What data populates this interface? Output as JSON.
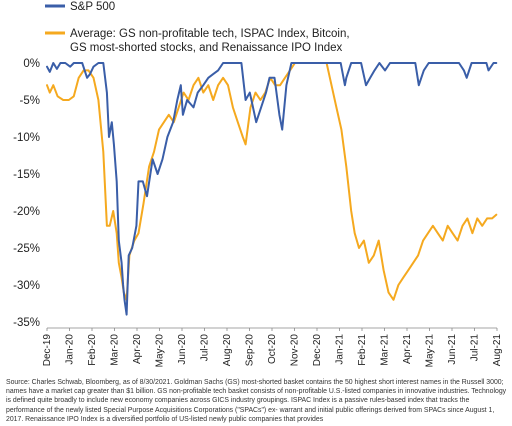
{
  "chart_data": {
    "type": "line",
    "title": "",
    "xlabel": "",
    "ylabel": "",
    "ylim": [
      -35,
      0
    ],
    "y_tick_labels": [
      "0%",
      "-5%",
      "-10%",
      "-15%",
      "-20%",
      "-25%",
      "-30%",
      "-35%"
    ],
    "y_ticks": [
      0,
      -5,
      -10,
      -15,
      -20,
      -25,
      -30,
      -35
    ],
    "x_tick_labels": [
      "Dec-19",
      "Jan-20",
      "Feb-20",
      "Mar-20",
      "Apr-20",
      "May-20",
      "Jun-20",
      "Jul-20",
      "Aug-20",
      "Sep-20",
      "Oct-20",
      "Nov-20",
      "Dec-20",
      "Jan-21",
      "Feb-21",
      "Mar-21",
      "Apr-21",
      "May-21",
      "Jun-21",
      "Jul-21",
      "Aug-21"
    ],
    "grid": false,
    "legend_position": "top",
    "series": [
      {
        "name": "S&P 500",
        "color": "#3a5ea8",
        "x": [
          "2019-12-01",
          "2019-12-05",
          "2019-12-10",
          "2019-12-15",
          "2019-12-20",
          "2019-12-27",
          "2020-01-03",
          "2020-01-08",
          "2020-01-14",
          "2020-01-20",
          "2020-01-27",
          "2020-01-31",
          "2020-02-05",
          "2020-02-12",
          "2020-02-19",
          "2020-02-24",
          "2020-02-27",
          "2020-03-02",
          "2020-03-05",
          "2020-03-09",
          "2020-03-12",
          "2020-03-16",
          "2020-03-18",
          "2020-03-20",
          "2020-03-23",
          "2020-03-26",
          "2020-03-31",
          "2020-04-06",
          "2020-04-09",
          "2020-04-15",
          "2020-04-21",
          "2020-04-29",
          "2020-05-06",
          "2020-05-13",
          "2020-05-20",
          "2020-05-28",
          "2020-06-03",
          "2020-06-08",
          "2020-06-11",
          "2020-06-17",
          "2020-06-26",
          "2020-07-02",
          "2020-07-10",
          "2020-07-17",
          "2020-07-24",
          "2020-07-31",
          "2020-08-07",
          "2020-08-14",
          "2020-08-21",
          "2020-08-28",
          "2020-09-02",
          "2020-09-08",
          "2020-09-14",
          "2020-09-23",
          "2020-09-30",
          "2020-10-07",
          "2020-10-12",
          "2020-10-19",
          "2020-10-26",
          "2020-10-30",
          "2020-11-05",
          "2020-11-12",
          "2020-11-19",
          "2020-11-27",
          "2020-12-07",
          "2020-12-17",
          "2020-12-28",
          "2021-01-07",
          "2021-01-14",
          "2021-01-21",
          "2021-01-27",
          "2021-01-29",
          "2021-02-05",
          "2021-02-12",
          "2021-02-19",
          "2021-02-26",
          "2021-03-04",
          "2021-03-10",
          "2021-03-17",
          "2021-03-25",
          "2021-04-01",
          "2021-04-09",
          "2021-04-16",
          "2021-04-23",
          "2021-04-30",
          "2021-05-07",
          "2021-05-12",
          "2021-05-19",
          "2021-05-26",
          "2021-06-02",
          "2021-06-09",
          "2021-06-16",
          "2021-06-23",
          "2021-06-30",
          "2021-07-08",
          "2021-07-15",
          "2021-07-19",
          "2021-07-26",
          "2021-08-02",
          "2021-08-09",
          "2021-08-16",
          "2021-08-19",
          "2021-08-26",
          "2021-08-30"
        ],
        "y": [
          -0.5,
          -1.2,
          0,
          -0.8,
          0,
          0,
          -0.5,
          0,
          0,
          0,
          -2,
          -1.5,
          -0.5,
          0,
          0,
          -4,
          -10,
          -8,
          -11,
          -16,
          -24,
          -27,
          -30,
          -32,
          -34,
          -26,
          -25,
          -22,
          -16,
          -16,
          -18,
          -13,
          -15,
          -13,
          -10,
          -8,
          -5,
          -3,
          -7,
          -5,
          -6,
          -4,
          -3,
          -2,
          -1.5,
          -1,
          0,
          0,
          0,
          0,
          0,
          -5,
          -4,
          -8,
          -6,
          -4,
          -2,
          -2,
          -7,
          -9,
          -3,
          0,
          0,
          0,
          0,
          0,
          0,
          0,
          0,
          0,
          -3,
          -2,
          0,
          0,
          0,
          -3,
          -2,
          -1,
          0,
          -1,
          0,
          0,
          0,
          0,
          0,
          0,
          -3,
          -1,
          0,
          0,
          0,
          0,
          0,
          0,
          0,
          -1,
          -2,
          0,
          0,
          0,
          0,
          -1,
          0,
          0
        ]
      },
      {
        "name": "Average: GS non-profitable tech, ISPAC Index, Bitcoin, GS most-shorted stocks, and Renaissance IPO Index",
        "color": "#f5a91f",
        "x": [
          "2019-12-01",
          "2019-12-05",
          "2019-12-10",
          "2019-12-16",
          "2019-12-24",
          "2020-01-01",
          "2020-01-08",
          "2020-01-15",
          "2020-01-22",
          "2020-01-29",
          "2020-02-05",
          "2020-02-12",
          "2020-02-19",
          "2020-02-24",
          "2020-02-28",
          "2020-03-04",
          "2020-03-09",
          "2020-03-12",
          "2020-03-16",
          "2020-03-19",
          "2020-03-23",
          "2020-03-27",
          "2020-04-03",
          "2020-04-09",
          "2020-04-16",
          "2020-04-24",
          "2020-05-01",
          "2020-05-08",
          "2020-05-15",
          "2020-05-22",
          "2020-05-29",
          "2020-06-05",
          "2020-06-12",
          "2020-06-19",
          "2020-06-26",
          "2020-07-03",
          "2020-07-10",
          "2020-07-17",
          "2020-07-24",
          "2020-07-31",
          "2020-08-07",
          "2020-08-14",
          "2020-08-21",
          "2020-08-28",
          "2020-09-04",
          "2020-09-08",
          "2020-09-15",
          "2020-09-22",
          "2020-09-29",
          "2020-10-06",
          "2020-10-13",
          "2020-10-20",
          "2020-10-27",
          "2020-11-03",
          "2020-11-10",
          "2020-11-17",
          "2020-11-24",
          "2020-12-01",
          "2020-12-08",
          "2020-12-15",
          "2020-12-22",
          "2021-01-01",
          "2021-01-08",
          "2021-01-15",
          "2021-01-22",
          "2021-01-29",
          "2021-02-05",
          "2021-02-10",
          "2021-02-16",
          "2021-02-23",
          "2021-03-02",
          "2021-03-09",
          "2021-03-16",
          "2021-03-23",
          "2021-03-30",
          "2021-04-06",
          "2021-04-13",
          "2021-04-20",
          "2021-04-27",
          "2021-05-04",
          "2021-05-11",
          "2021-05-18",
          "2021-05-25",
          "2021-06-01",
          "2021-06-08",
          "2021-06-15",
          "2021-06-22",
          "2021-06-29",
          "2021-07-06",
          "2021-07-13",
          "2021-07-20",
          "2021-07-27",
          "2021-08-03",
          "2021-08-10",
          "2021-08-17",
          "2021-08-24",
          "2021-08-30"
        ],
        "y": [
          -3,
          -4,
          -3,
          -4.5,
          -5,
          -5,
          -4.5,
          -2,
          -1,
          -1,
          -2,
          -5,
          -12,
          -22,
          -22,
          -20,
          -23,
          -27,
          -29,
          -31,
          -32,
          -26,
          -24,
          -23,
          -19,
          -14,
          -12,
          -9,
          -8,
          -7,
          -8,
          -6,
          -4,
          -5,
          -3,
          -2,
          -4,
          -3,
          -5,
          -3,
          -2,
          -3,
          -6,
          -8,
          -10,
          -11,
          -6,
          -4,
          -5,
          -4,
          -2,
          -3,
          -3,
          -2,
          -1,
          0,
          0,
          0,
          0,
          0,
          0,
          0,
          -3,
          -6,
          -9,
          -14,
          -20,
          -23,
          -25,
          -24,
          -27,
          -26,
          -24,
          -28,
          -31,
          -32,
          -30,
          -29,
          -28,
          -27,
          -26,
          -24,
          -23,
          -22,
          -23,
          -24,
          -22,
          -23,
          -24,
          -22,
          -21,
          -23,
          -21,
          -22,
          -21,
          -21,
          -20.5
        ]
      }
    ]
  },
  "footnote": "Source: Charles Schwab, Bloomberg, as of 8/30/2021. Goldman Sachs (GS) most-shorted basket contains the 50 highest short interest names in the Russell 3000; names have a market cap greater than $1 billion. GS non-profitable tech basket consists of non-profitable U.S.-listed companies in innovative industries. Technology is defined quite broadly to include new economy companies across GICS industry groupings. ISPAC Index is a passive rules-based index that tracks the performance of the newly listed Special Purpose Acquisitions Corporations (\"SPACs\") ex- warrant and initial public offerings derived from SPACs since August 1, 2017. Renaissance IPO Index is a diversified portfolio of US-listed newly public companies that provides"
}
